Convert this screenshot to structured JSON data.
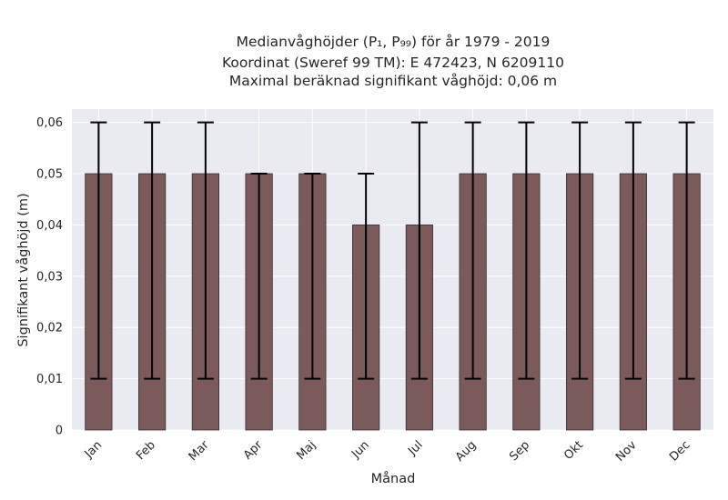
{
  "chart_data": {
    "type": "bar",
    "title_lines": [
      "Medianvåghöjder (P₁, P₉₉) för år 1979 - 2019",
      "Koordinat (Sweref 99 TM): E 472423, N 6209110",
      "Maximal beräknad signifikant våghöjd: 0,06 m"
    ],
    "xlabel": "Månad",
    "ylabel": "Signifikant våghöjd (m)",
    "categories": [
      "Jan",
      "Feb",
      "Mar",
      "Apr",
      "Maj",
      "Jun",
      "Jul",
      "Aug",
      "Sep",
      "Okt",
      "Nov",
      "Dec"
    ],
    "values": [
      0.05,
      0.05,
      0.05,
      0.05,
      0.05,
      0.04,
      0.04,
      0.05,
      0.05,
      0.05,
      0.05,
      0.05
    ],
    "p1": [
      0.01,
      0.01,
      0.01,
      0.01,
      0.01,
      0.01,
      0.01,
      0.01,
      0.01,
      0.01,
      0.01,
      0.01
    ],
    "p99": [
      0.06,
      0.06,
      0.06,
      0.05,
      0.05,
      0.05,
      0.06,
      0.06,
      0.06,
      0.06,
      0.06,
      0.06
    ],
    "ylim": [
      0,
      0.0626
    ],
    "yticks": [
      0,
      0.01,
      0.02,
      0.03,
      0.04,
      0.05,
      0.06
    ],
    "ytick_labels": [
      "0",
      "0,01",
      "0,02",
      "0,03",
      "0,04",
      "0,05",
      "0,06"
    ],
    "grid": true,
    "legend": "none",
    "colors": {
      "bar": "#7a5a5a",
      "bar_edge": "#3a2a2a",
      "errorbar": "#000000",
      "plot_background": "#eaeaf2",
      "grid": "#ffffff"
    }
  }
}
